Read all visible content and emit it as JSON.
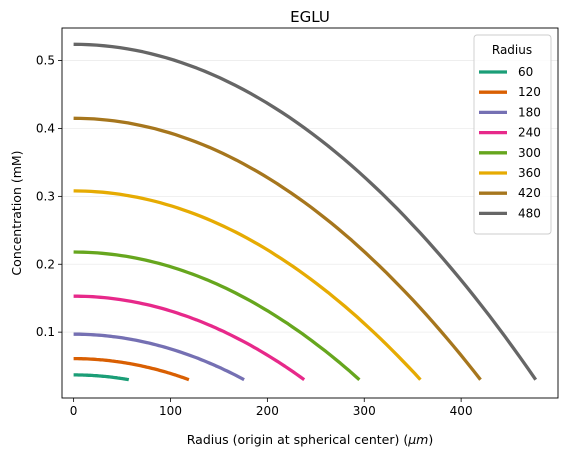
{
  "chart_data": {
    "type": "line",
    "title": "EGLU",
    "xlabel_main": "Radius (origin at spherical center) (",
    "xlabel_unit": "μm",
    "xlabel_close": ")",
    "ylabel": "Concentration (mM)",
    "xlim": [
      -12,
      500
    ],
    "ylim": [
      0.003,
      0.548
    ],
    "xticks": [
      0,
      100,
      200,
      300,
      400
    ],
    "yticks": [
      0.1,
      0.2,
      0.3,
      0.4,
      0.5
    ],
    "grid": "horizontal-faint",
    "legend": {
      "title": "Radius",
      "placement": "top-right"
    },
    "series": [
      {
        "name": "60",
        "color": "#1b9e77",
        "x_max": 57,
        "y_center": 0.037,
        "y_edge": 0.03
      },
      {
        "name": "120",
        "color": "#d95f02",
        "x_max": 119,
        "y_center": 0.061,
        "y_edge": 0.03
      },
      {
        "name": "180",
        "color": "#7570b3",
        "x_max": 176,
        "y_center": 0.097,
        "y_edge": 0.03
      },
      {
        "name": "240",
        "color": "#e7298a",
        "x_max": 238,
        "y_center": 0.153,
        "y_edge": 0.03
      },
      {
        "name": "300",
        "color": "#66a61e",
        "x_max": 295,
        "y_center": 0.218,
        "y_edge": 0.03
      },
      {
        "name": "360",
        "color": "#e6ab02",
        "x_max": 358,
        "y_center": 0.308,
        "y_edge": 0.03
      },
      {
        "name": "420",
        "color": "#a6761d",
        "x_max": 420,
        "y_center": 0.415,
        "y_edge": 0.03
      },
      {
        "name": "480",
        "color": "#666666",
        "x_max": 477,
        "y_center": 0.524,
        "y_edge": 0.03
      }
    ]
  }
}
